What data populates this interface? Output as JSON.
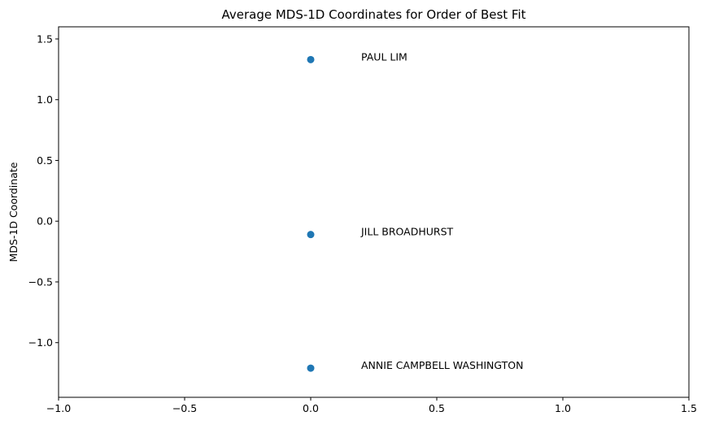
{
  "chart_data": {
    "type": "scatter",
    "title": "Average MDS-1D Coordinates for Order of Best Fit",
    "xlabel": "",
    "ylabel": "MDS-1D Coordinate",
    "xlim": [
      -1.0,
      1.5
    ],
    "ylim": [
      -1.45,
      1.6
    ],
    "grid": false,
    "marker_color": "#1f77b4",
    "x_ticks": [
      {
        "value": -1.0,
        "label": "−1.0"
      },
      {
        "value": -0.5,
        "label": "−0.5"
      },
      {
        "value": 0.0,
        "label": "0.0"
      },
      {
        "value": 0.5,
        "label": "0.5"
      },
      {
        "value": 1.0,
        "label": "1.0"
      },
      {
        "value": 1.5,
        "label": "1.5"
      }
    ],
    "y_ticks": [
      {
        "value": -1.0,
        "label": "−1.0"
      },
      {
        "value": -0.5,
        "label": "−0.5"
      },
      {
        "value": 0.0,
        "label": "0.0"
      },
      {
        "value": 0.5,
        "label": "0.5"
      },
      {
        "value": 1.0,
        "label": "1.0"
      },
      {
        "value": 1.5,
        "label": "1.5"
      }
    ],
    "points": [
      {
        "x": 0.0,
        "y": 1.33,
        "label": "PAUL LIM",
        "label_x": 0.2,
        "label_y": 1.33
      },
      {
        "x": 0.0,
        "y": -0.11,
        "label": "JILL BROADHURST",
        "label_x": 0.2,
        "label_y": -0.11
      },
      {
        "x": 0.0,
        "y": -1.21,
        "label": "ANNIE CAMPBELL WASHINGTON",
        "label_x": 0.2,
        "label_y": -1.21
      }
    ]
  }
}
